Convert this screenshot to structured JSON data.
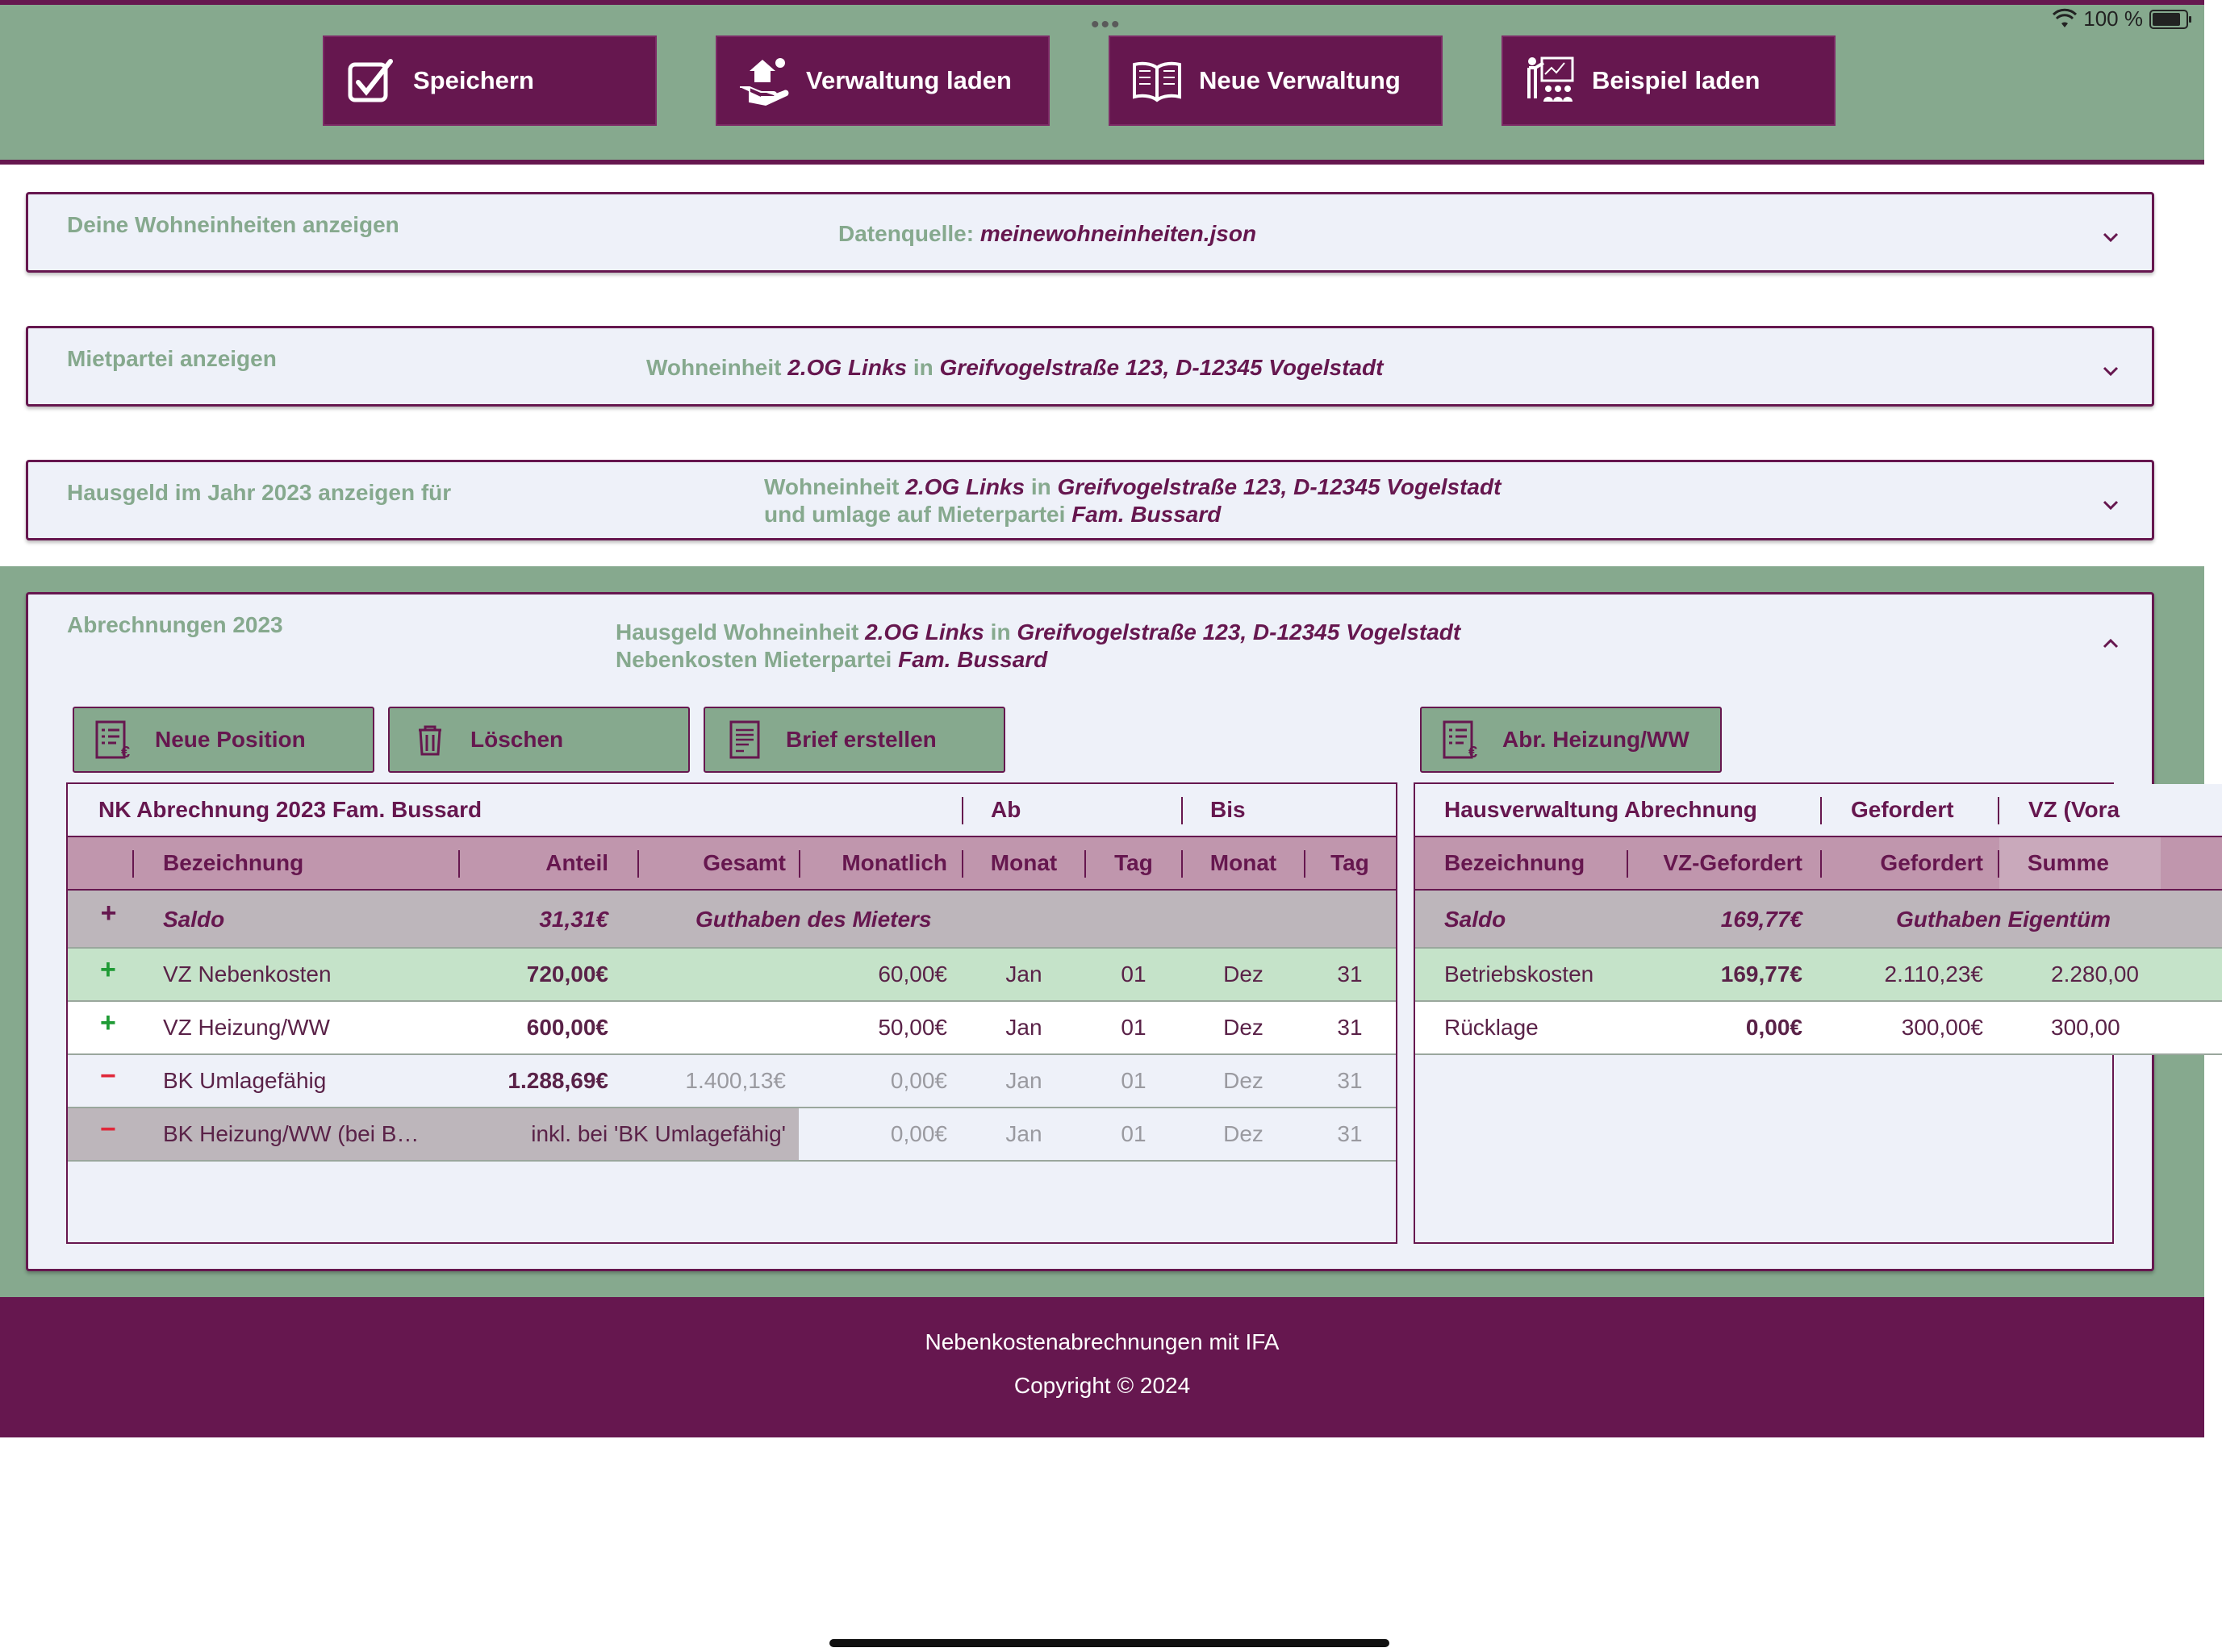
{
  "status_bar": {
    "dots": "•••",
    "battery_text": "100 %"
  },
  "toolbar": {
    "save": "Speichern",
    "load": "Verwaltung laden",
    "new": "Neue Verwaltung",
    "example": "Beispiel laden"
  },
  "panels": {
    "units": {
      "title": "Deine Wohneinheiten anzeigen",
      "source_label": "Datenquelle:",
      "source_file": "meinewohneinheiten.json"
    },
    "tenant": {
      "title": "Mietpartei anzeigen",
      "unit_label": "Wohneinheit",
      "unit": "2.OG Links",
      "in": "in",
      "address": "Greifvogelstraße 123, D-12345 Vogelstadt"
    },
    "hausgeld": {
      "title": "Hausgeld im Jahr 2023 anzeigen für",
      "unit_label": "Wohneinheit",
      "unit": "2.OG Links",
      "in": "in",
      "address": "Greifvogelstraße 123, D-12345 Vogelstadt",
      "line2_label": "und umlage auf Mieterpartei",
      "tenant": "Fam. Bussard"
    },
    "abrechnungen": {
      "title": "Abrechnungen 2023",
      "line1_label": "Hausgeld Wohneinheit",
      "unit": "2.OG Links",
      "in": "in",
      "address": "Greifvogelstraße 123, D-12345 Vogelstadt",
      "line2_label": "Nebenkosten Mieterpartei",
      "tenant": "Fam. Bussard"
    }
  },
  "actions": {
    "new_position": "Neue Position",
    "delete": "Löschen",
    "letter": "Brief erstellen",
    "heating": "Abr. Heizung/WW"
  },
  "nk_table": {
    "title": "NK Abrechnung 2023 Fam. Bussard",
    "ab": "Ab",
    "bis": "Bis",
    "columns": [
      "Bezeichnung",
      "Anteil",
      "Gesamt",
      "Monatlich",
      "Monat",
      "Tag",
      "Monat",
      "Tag"
    ],
    "saldo": {
      "sign": "+",
      "label": "Saldo",
      "value": "31,31€",
      "note": "Guthaben des Mieters"
    },
    "rows": [
      {
        "sign": "+",
        "name": "VZ Nebenkosten",
        "anteil": "720,00€",
        "gesamt": "",
        "monatlich": "60,00€",
        "ab_monat": "Jan",
        "ab_tag": "01",
        "bis_monat": "Dez",
        "bis_tag": "31"
      },
      {
        "sign": "+",
        "name": "VZ Heizung/WW",
        "anteil": "600,00€",
        "gesamt": "",
        "monatlich": "50,00€",
        "ab_monat": "Jan",
        "ab_tag": "01",
        "bis_monat": "Dez",
        "bis_tag": "31"
      },
      {
        "sign": "−",
        "name": "BK Umlagefähig",
        "anteil": "1.288,69€",
        "gesamt": "1.400,13€",
        "monatlich": "0,00€",
        "ab_monat": "Jan",
        "ab_tag": "01",
        "bis_monat": "Dez",
        "bis_tag": "31"
      },
      {
        "sign": "−",
        "name": "BK Heizung/WW (bei B…",
        "anteil": "inkl. bei 'BK Umlagefähig'",
        "monatlich": "0,00€",
        "ab_monat": "Jan",
        "ab_tag": "01",
        "bis_monat": "Dez",
        "bis_tag": "31"
      }
    ]
  },
  "hv_table": {
    "title": "Hausverwaltung Abrechnung",
    "gefordert": "Gefordert",
    "vz": "VZ (Vora",
    "columns": [
      "Bezeichnung",
      "VZ-Gefordert",
      "Gefordert",
      "Summe"
    ],
    "saldo": {
      "label": "Saldo",
      "value": "169,77€",
      "note": "Guthaben Eigentüm"
    },
    "rows": [
      {
        "name": "Betriebskosten",
        "vz_gefordert": "169,77€",
        "gefordert": "2.110,23€",
        "summe": "2.280,00"
      },
      {
        "name": "Rücklage",
        "vz_gefordert": "0,00€",
        "gefordert": "300,00€",
        "summe": "300,00"
      }
    ]
  },
  "footer": {
    "line1": "Nebenkostenabrechnungen mit IFA",
    "line2": "Copyright © 2024"
  }
}
